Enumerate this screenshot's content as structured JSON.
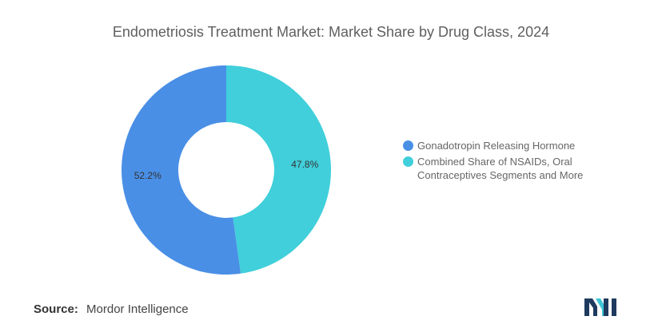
{
  "chart_data": {
    "type": "pie",
    "title": "Endometriosis Treatment Market: Market Share by Drug Class, 2024",
    "donut": true,
    "legend_position": "right",
    "slices": [
      {
        "label": "Combined Share of NSAIDs, Oral Contraceptives Segments and More",
        "value": 47.8,
        "display": "47.8%",
        "color": "#40CFDB"
      },
      {
        "label": "Gonadotropin Releasing Hormone",
        "value": 52.2,
        "display": "52.2%",
        "color": "#4A8FE6"
      }
    ],
    "legend": [
      {
        "label": "Gonadotropin Releasing Hormone",
        "color": "#4A8FE6"
      },
      {
        "label": "Combined Share of NSAIDs, Oral Contraceptives Segments and More",
        "color": "#40CFDB"
      }
    ]
  },
  "source": {
    "label": "Source:",
    "value": "Mordor Intelligence"
  },
  "logo": {
    "icon": "mordor-intelligence-logo",
    "colors": [
      "#1e3a5f",
      "#3ec6d6"
    ]
  }
}
